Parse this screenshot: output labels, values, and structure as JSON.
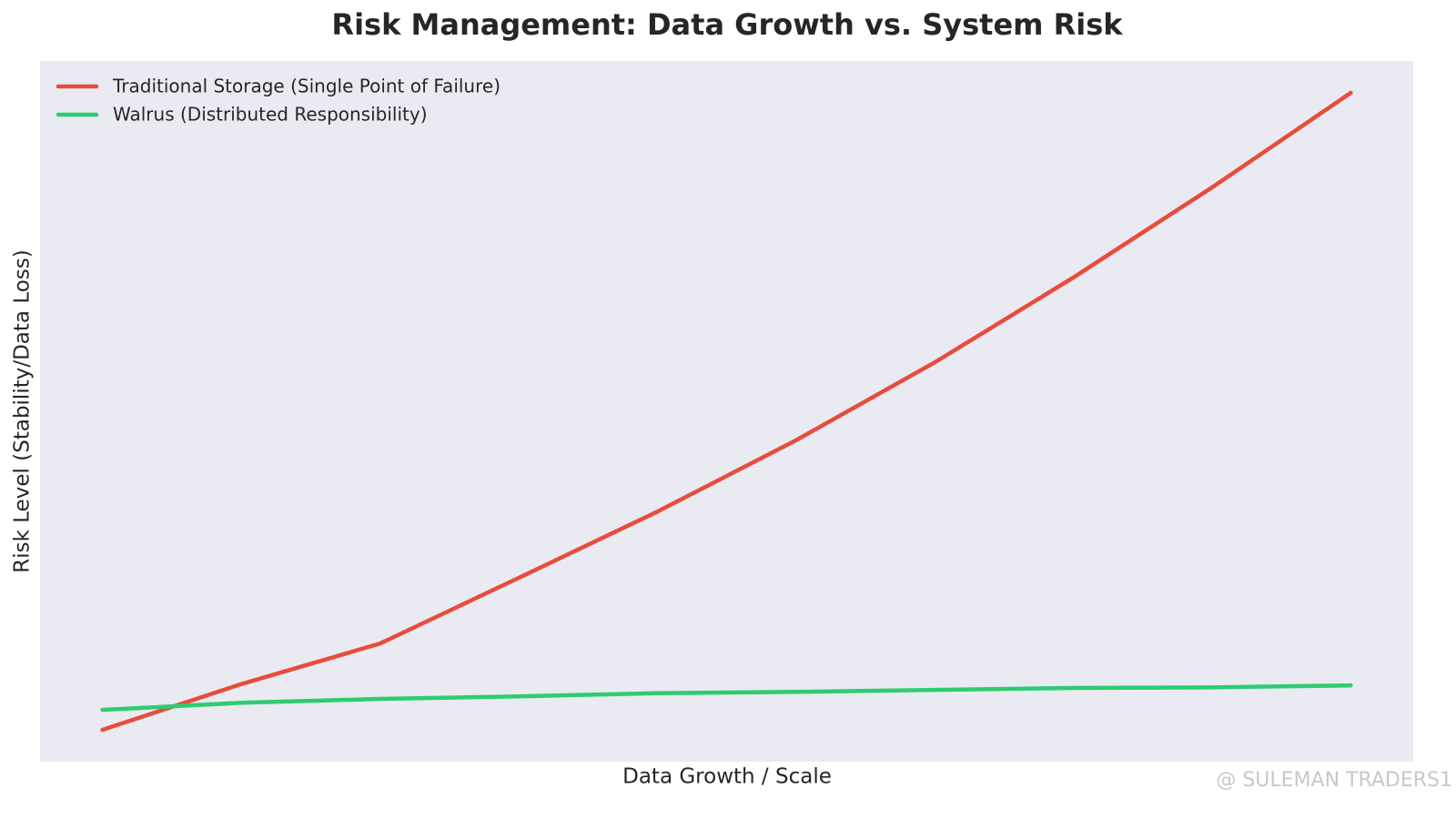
{
  "chart_data": {
    "type": "line",
    "title": "Risk Management: Data Growth vs. System Risk",
    "x_label": "Data Growth / Scale",
    "y_label": "Risk Level (Stability/Data Loss)",
    "x": [
      1,
      2,
      3,
      4,
      5,
      6,
      7,
      8,
      9,
      10
    ],
    "series": [
      {
        "name": "Traditional Storage (Single Point of Failure)",
        "color": "#e74c3c",
        "values": [
          1.0,
          8.1,
          14.4,
          24.6,
          34.9,
          46.0,
          58.1,
          71.3,
          85.3,
          100
        ]
      },
      {
        "name": "Walrus (Distributed Responsibility)",
        "color": "#2ecc71",
        "values": [
          4.1,
          5.2,
          5.8,
          6.2,
          6.7,
          6.9,
          7.2,
          7.5,
          7.6,
          7.9
        ]
      }
    ],
    "xlim": [
      0.55,
      10.45
    ],
    "ylim": [
      -3.95,
      104.95
    ],
    "grid": false,
    "legend": "upper-left",
    "watermark": "@ SULEMAN TRADERS1"
  }
}
